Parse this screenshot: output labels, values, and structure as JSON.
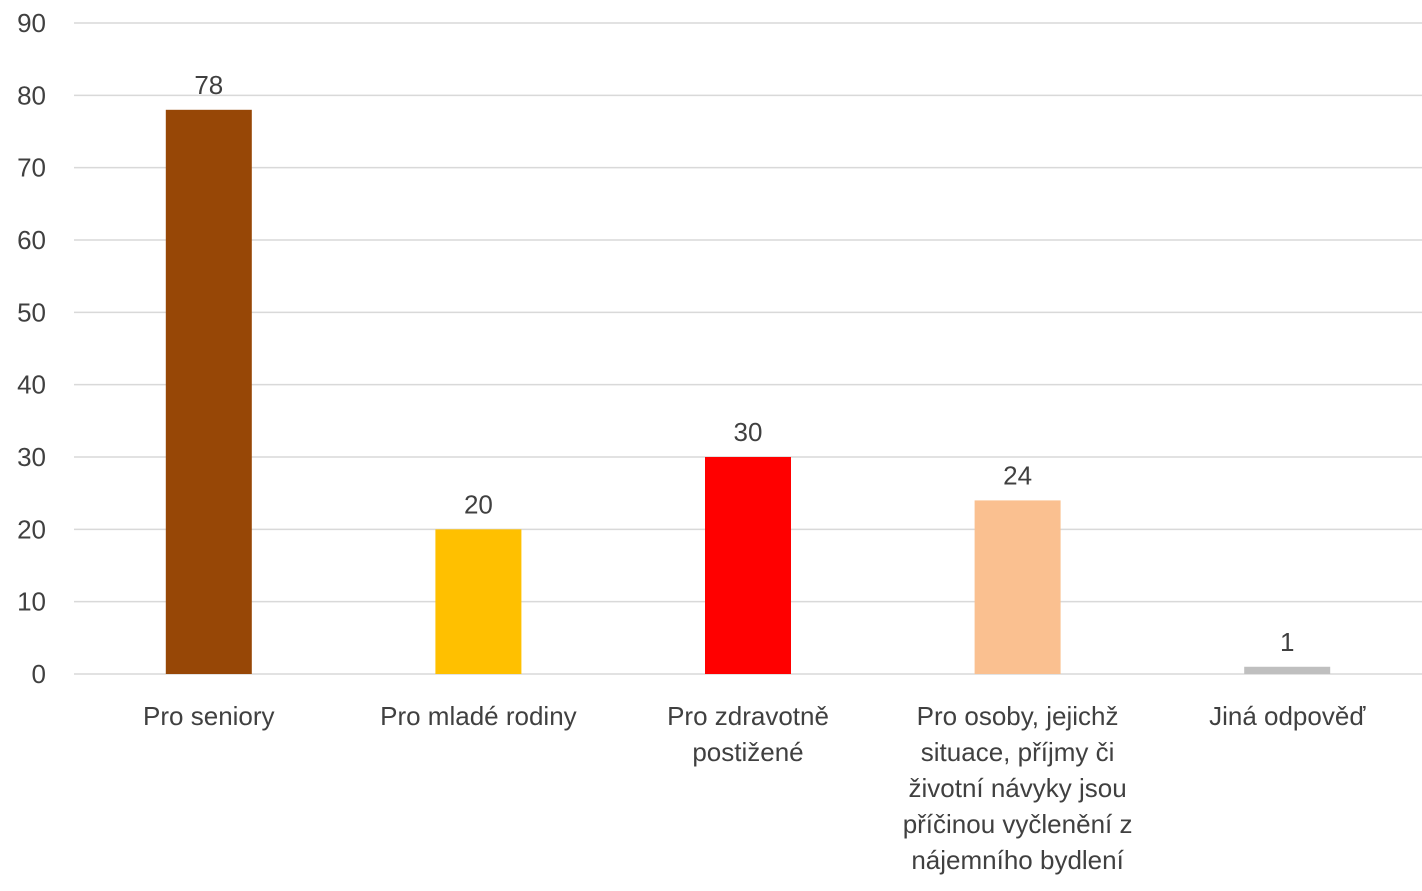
{
  "chart_data": {
    "type": "bar",
    "categories": [
      "Pro seniory",
      "Pro mladé rodiny",
      "Pro zdravotně postižené",
      "Pro osoby, jejichž situace, příjmy či životní návyky jsou příčinou vyčlenění z nájemního bydlení",
      "Jiná odpověď"
    ],
    "category_label_lines": [
      [
        "Pro seniory"
      ],
      [
        "Pro mladé rodiny"
      ],
      [
        "Pro zdravotně",
        "postižené"
      ],
      [
        "Pro osoby, jejichž",
        "situace, příjmy či",
        "životní návyky jsou",
        "příčinou vyčlenění z",
        "nájemního bydlení"
      ],
      [
        "Jiná odpověď"
      ]
    ],
    "values": [
      78,
      20,
      30,
      24,
      1
    ],
    "data_labels": [
      "78",
      "20",
      "30",
      "24",
      "1"
    ],
    "colors": [
      "#974706",
      "#FFC000",
      "#FF0000",
      "#FAC090",
      "#BFBFBF"
    ],
    "ylim": [
      0,
      90
    ],
    "y_ticks": [
      0,
      10,
      20,
      30,
      40,
      50,
      60,
      70,
      80,
      90
    ],
    "y_tick_labels": [
      "0",
      "10",
      "20",
      "30",
      "40",
      "50",
      "60",
      "70",
      "80",
      "90"
    ],
    "grid": true,
    "legend": "none",
    "title": "",
    "xlabel": "",
    "ylabel": ""
  },
  "style": {
    "grid_color": "#D9D9D9",
    "text_color": "#404040",
    "background": "#FFFFFF"
  }
}
